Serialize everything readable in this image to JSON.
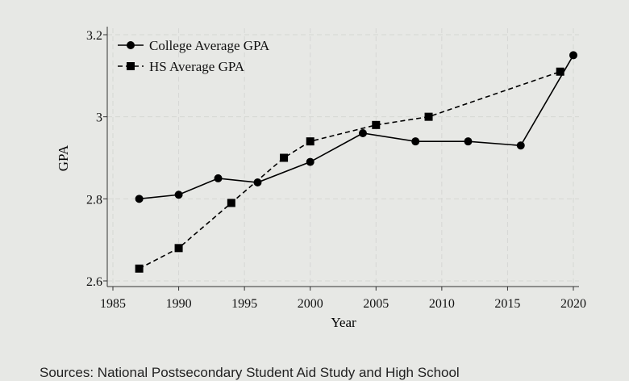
{
  "chart_data": {
    "type": "line",
    "title": "",
    "xlabel": "Year",
    "ylabel": "GPA",
    "xlim": [
      1985,
      2020
    ],
    "ylim": [
      2.6,
      3.2
    ],
    "xticks": [
      1985,
      1990,
      1995,
      2000,
      2005,
      2010,
      2015,
      2020
    ],
    "yticks": [
      2.6,
      2.8,
      3,
      3.2
    ],
    "ytick_labels": [
      "2.6",
      "2.8",
      "3",
      "3.2"
    ],
    "grid": true,
    "legend_position": "top-left",
    "series": [
      {
        "name": "College Average GPA",
        "style": "solid",
        "marker": "circle",
        "color": "#000000",
        "x": [
          1987,
          1990,
          1993,
          1996,
          2000,
          2004,
          2008,
          2012,
          2016,
          2020
        ],
        "y": [
          2.8,
          2.81,
          2.85,
          2.84,
          2.89,
          2.96,
          2.94,
          2.94,
          2.93,
          3.15
        ]
      },
      {
        "name": "HS Average GPA",
        "style": "dashed",
        "marker": "square",
        "color": "#000000",
        "x": [
          1987,
          1990,
          1994,
          1998,
          2000,
          2005,
          2009,
          2019
        ],
        "y": [
          2.63,
          2.68,
          2.79,
          2.9,
          2.94,
          2.98,
          3.0,
          3.11
        ]
      }
    ]
  },
  "source_note": "Sources: National Postsecondary Student Aid Study and High School"
}
